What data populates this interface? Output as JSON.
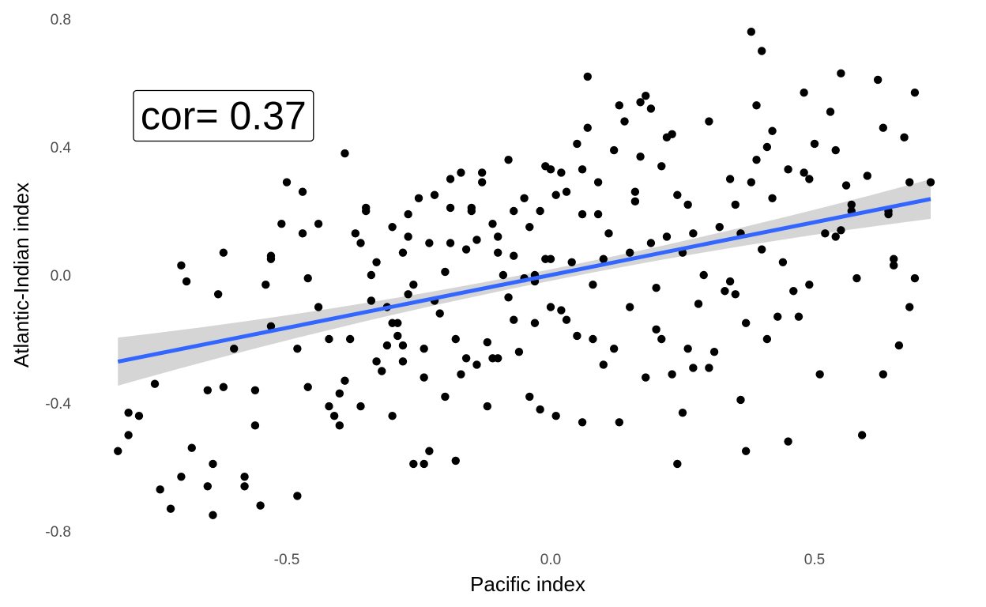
{
  "chart_data": {
    "type": "scatter",
    "title": "",
    "xlabel": "Pacific index",
    "ylabel": "Atlantic-Indian index",
    "xlim": [
      -0.84,
      0.74
    ],
    "ylim": [
      -0.8,
      0.8
    ],
    "x_ticks": [
      {
        "value": -0.5,
        "label": "-0.5"
      },
      {
        "value": 0.0,
        "label": "0.0"
      },
      {
        "value": 0.5,
        "label": "0.5"
      }
    ],
    "y_ticks": [
      {
        "value": -0.8,
        "label": "-0.8"
      },
      {
        "value": -0.4,
        "label": "-0.4"
      },
      {
        "value": 0.0,
        "label": "0.0"
      },
      {
        "value": 0.4,
        "label": "0.4"
      },
      {
        "value": 0.8,
        "label": "0.8"
      }
    ],
    "grid": false,
    "legend": "none",
    "annotation": {
      "text": "cor= 0.37",
      "x": -0.62,
      "y": 0.5
    },
    "trend_line": {
      "slope": 0.33,
      "intercept": 0.0,
      "x_range": [
        -0.82,
        0.72
      ],
      "se_band": true
    },
    "colors": {
      "points": "#000000",
      "line": "#3366ff",
      "band": "#d3d3d3"
    },
    "points": [
      [
        -0.82,
        -0.55
      ],
      [
        -0.8,
        -0.43
      ],
      [
        -0.8,
        -0.5
      ],
      [
        -0.78,
        -0.44
      ],
      [
        -0.75,
        -0.34
      ],
      [
        -0.74,
        -0.67
      ],
      [
        -0.72,
        -0.73
      ],
      [
        -0.7,
        0.03
      ],
      [
        -0.7,
        -0.63
      ],
      [
        -0.69,
        -0.02
      ],
      [
        -0.68,
        -0.54
      ],
      [
        -0.65,
        -0.66
      ],
      [
        -0.65,
        -0.36
      ],
      [
        -0.64,
        -0.59
      ],
      [
        -0.64,
        -0.75
      ],
      [
        -0.63,
        -0.06
      ],
      [
        -0.62,
        0.07
      ],
      [
        -0.62,
        -0.35
      ],
      [
        -0.6,
        -0.23
      ],
      [
        -0.58,
        -0.63
      ],
      [
        -0.58,
        -0.66
      ],
      [
        -0.56,
        -0.36
      ],
      [
        -0.56,
        -0.47
      ],
      [
        -0.55,
        -0.72
      ],
      [
        -0.54,
        -0.03
      ],
      [
        -0.53,
        -0.16
      ],
      [
        -0.53,
        0.06
      ],
      [
        -0.53,
        0.05
      ],
      [
        -0.51,
        0.16
      ],
      [
        -0.5,
        0.29
      ],
      [
        -0.48,
        -0.23
      ],
      [
        -0.48,
        -0.69
      ],
      [
        -0.47,
        0.26
      ],
      [
        -0.47,
        0.13
      ],
      [
        -0.46,
        -0.01
      ],
      [
        -0.46,
        -0.35
      ],
      [
        -0.44,
        0.16
      ],
      [
        -0.44,
        -0.1
      ],
      [
        -0.42,
        -0.2
      ],
      [
        -0.42,
        -0.41
      ],
      [
        -0.41,
        -0.44
      ],
      [
        -0.4,
        -0.37
      ],
      [
        -0.4,
        -0.47
      ],
      [
        -0.39,
        -0.33
      ],
      [
        -0.39,
        0.38
      ],
      [
        -0.38,
        -0.2
      ],
      [
        -0.37,
        0.13
      ],
      [
        -0.36,
        0.1
      ],
      [
        -0.36,
        -0.41
      ],
      [
        -0.35,
        0.2
      ],
      [
        -0.35,
        0.21
      ],
      [
        -0.34,
        -0.08
      ],
      [
        -0.34,
        0.0
      ],
      [
        -0.33,
        0.04
      ],
      [
        -0.33,
        -0.27
      ],
      [
        -0.32,
        -0.3
      ],
      [
        -0.31,
        -0.22
      ],
      [
        -0.31,
        -0.1
      ],
      [
        -0.3,
        -0.15
      ],
      [
        -0.3,
        0.15
      ],
      [
        -0.3,
        -0.44
      ],
      [
        -0.29,
        -0.19
      ],
      [
        -0.29,
        -0.15
      ],
      [
        -0.28,
        -0.27
      ],
      [
        -0.28,
        0.07
      ],
      [
        -0.28,
        -0.22
      ],
      [
        -0.27,
        0.12
      ],
      [
        -0.27,
        0.19
      ],
      [
        -0.27,
        -0.06
      ],
      [
        -0.26,
        -0.59
      ],
      [
        -0.26,
        -0.03
      ],
      [
        -0.25,
        0.24
      ],
      [
        -0.24,
        -0.32
      ],
      [
        -0.24,
        -0.59
      ],
      [
        -0.24,
        -0.23
      ],
      [
        -0.23,
        0.1
      ],
      [
        -0.23,
        -0.55
      ],
      [
        -0.22,
        0.25
      ],
      [
        -0.22,
        -0.08
      ],
      [
        -0.21,
        -0.12
      ],
      [
        -0.2,
        0.01
      ],
      [
        -0.2,
        -0.38
      ],
      [
        -0.19,
        0.21
      ],
      [
        -0.19,
        0.3
      ],
      [
        -0.19,
        0.1
      ],
      [
        -0.18,
        -0.2
      ],
      [
        -0.18,
        -0.58
      ],
      [
        -0.17,
        -0.31
      ],
      [
        -0.17,
        0.32
      ],
      [
        -0.16,
        0.08
      ],
      [
        -0.16,
        -0.26
      ],
      [
        -0.15,
        0.21
      ],
      [
        -0.15,
        0.2
      ],
      [
        -0.14,
        0.11
      ],
      [
        -0.14,
        -0.28
      ],
      [
        -0.13,
        0.29
      ],
      [
        -0.13,
        0.32
      ],
      [
        -0.12,
        -0.21
      ],
      [
        -0.12,
        -0.41
      ],
      [
        -0.11,
        0.16
      ],
      [
        -0.11,
        -0.26
      ],
      [
        -0.1,
        0.07
      ],
      [
        -0.1,
        -0.26
      ],
      [
        -0.1,
        0.12
      ],
      [
        -0.09,
        0.0
      ],
      [
        -0.08,
        0.36
      ],
      [
        -0.08,
        -0.07
      ],
      [
        -0.07,
        0.2
      ],
      [
        -0.07,
        -0.14
      ],
      [
        -0.07,
        0.06
      ],
      [
        -0.06,
        -0.24
      ],
      [
        -0.05,
        0.24
      ],
      [
        -0.05,
        -0.01
      ],
      [
        -0.04,
        0.15
      ],
      [
        -0.04,
        -0.38
      ],
      [
        -0.03,
        -0.15
      ],
      [
        -0.03,
        -0.02
      ],
      [
        -0.03,
        0.0
      ],
      [
        -0.02,
        -0.42
      ],
      [
        -0.02,
        0.2
      ],
      [
        -0.01,
        0.05
      ],
      [
        -0.01,
        0.34
      ],
      [
        0.0,
        0.33
      ],
      [
        0.0,
        -0.1
      ],
      [
        0.0,
        0.05
      ],
      [
        0.01,
        -0.44
      ],
      [
        0.01,
        0.25
      ],
      [
        0.02,
        0.32
      ],
      [
        0.02,
        -0.11
      ],
      [
        0.03,
        -0.14
      ],
      [
        0.03,
        0.26
      ],
      [
        0.04,
        0.04
      ],
      [
        0.05,
        -0.19
      ],
      [
        0.05,
        0.41
      ],
      [
        0.06,
        0.19
      ],
      [
        0.06,
        -0.46
      ],
      [
        0.06,
        0.33
      ],
      [
        0.07,
        0.62
      ],
      [
        0.07,
        0.46
      ],
      [
        0.08,
        -0.03
      ],
      [
        0.08,
        -0.2
      ],
      [
        0.09,
        0.29
      ],
      [
        0.09,
        0.19
      ],
      [
        0.1,
        -0.28
      ],
      [
        0.1,
        0.05
      ],
      [
        0.11,
        0.13
      ],
      [
        0.12,
        0.39
      ],
      [
        0.12,
        -0.23
      ],
      [
        0.13,
        -0.46
      ],
      [
        0.13,
        0.53
      ],
      [
        0.14,
        0.48
      ],
      [
        0.15,
        -0.1
      ],
      [
        0.15,
        0.07
      ],
      [
        0.16,
        0.26
      ],
      [
        0.16,
        0.23
      ],
      [
        0.17,
        0.54
      ],
      [
        0.17,
        0.37
      ],
      [
        0.18,
        -0.32
      ],
      [
        0.18,
        0.56
      ],
      [
        0.19,
        0.52
      ],
      [
        0.19,
        0.1
      ],
      [
        0.2,
        -0.04
      ],
      [
        0.2,
        -0.17
      ],
      [
        0.21,
        0.34
      ],
      [
        0.21,
        -0.2
      ],
      [
        0.22,
        0.12
      ],
      [
        0.22,
        0.43
      ],
      [
        0.23,
        -0.31
      ],
      [
        0.23,
        0.44
      ],
      [
        0.24,
        0.25
      ],
      [
        0.24,
        -0.59
      ],
      [
        0.25,
        -0.43
      ],
      [
        0.25,
        0.07
      ],
      [
        0.26,
        -0.23
      ],
      [
        0.26,
        0.22
      ],
      [
        0.27,
        -0.29
      ],
      [
        0.27,
        0.13
      ],
      [
        0.28,
        -0.09
      ],
      [
        0.29,
        0.0
      ],
      [
        0.3,
        0.48
      ],
      [
        0.3,
        -0.29
      ],
      [
        0.31,
        -0.24
      ],
      [
        0.32,
        0.15
      ],
      [
        0.33,
        -0.05
      ],
      [
        0.34,
        -0.02
      ],
      [
        0.34,
        0.3
      ],
      [
        0.35,
        -0.06
      ],
      [
        0.35,
        0.22
      ],
      [
        0.36,
        0.13
      ],
      [
        0.36,
        -0.39
      ],
      [
        0.37,
        -0.55
      ],
      [
        0.37,
        -0.15
      ],
      [
        0.38,
        0.76
      ],
      [
        0.38,
        0.29
      ],
      [
        0.39,
        0.53
      ],
      [
        0.39,
        0.36
      ],
      [
        0.4,
        0.7
      ],
      [
        0.4,
        0.08
      ],
      [
        0.41,
        -0.2
      ],
      [
        0.41,
        0.4
      ],
      [
        0.42,
        0.24
      ],
      [
        0.42,
        0.45
      ],
      [
        0.43,
        -0.13
      ],
      [
        0.44,
        0.04
      ],
      [
        0.45,
        0.33
      ],
      [
        0.45,
        -0.52
      ],
      [
        0.46,
        -0.05
      ],
      [
        0.47,
        -0.13
      ],
      [
        0.48,
        0.32
      ],
      [
        0.48,
        0.57
      ],
      [
        0.49,
        0.3
      ],
      [
        0.49,
        -0.03
      ],
      [
        0.5,
        0.41
      ],
      [
        0.51,
        -0.31
      ],
      [
        0.52,
        0.13
      ],
      [
        0.53,
        0.51
      ],
      [
        0.54,
        0.39
      ],
      [
        0.54,
        0.12
      ],
      [
        0.55,
        0.14
      ],
      [
        0.55,
        0.63
      ],
      [
        0.56,
        0.28
      ],
      [
        0.57,
        0.2
      ],
      [
        0.57,
        0.22
      ],
      [
        0.58,
        -0.01
      ],
      [
        0.59,
        -0.5
      ],
      [
        0.6,
        0.31
      ],
      [
        0.62,
        0.61
      ],
      [
        0.63,
        -0.31
      ],
      [
        0.63,
        0.46
      ],
      [
        0.64,
        0.19
      ],
      [
        0.64,
        0.2
      ],
      [
        0.65,
        0.05
      ],
      [
        0.65,
        0.03
      ],
      [
        0.66,
        -0.22
      ],
      [
        0.67,
        0.43
      ],
      [
        0.68,
        -0.1
      ],
      [
        0.68,
        0.29
      ],
      [
        0.69,
        -0.01
      ],
      [
        0.69,
        0.57
      ],
      [
        0.72,
        0.29
      ]
    ]
  }
}
